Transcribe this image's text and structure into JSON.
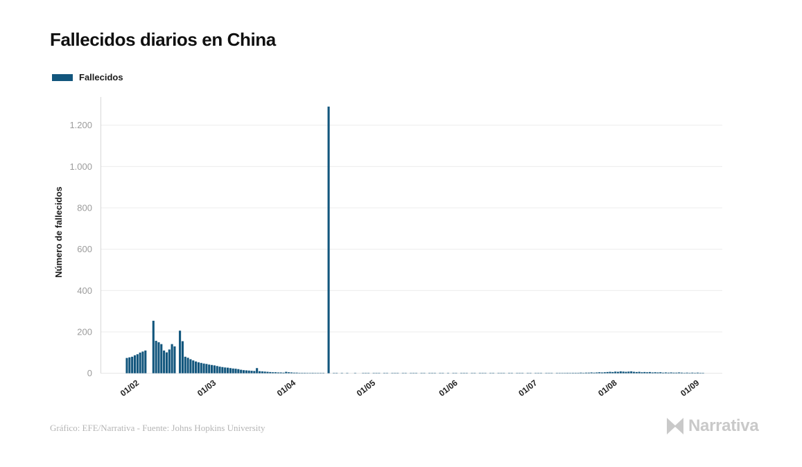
{
  "header": {
    "title": "Fallecidos diarios en China"
  },
  "legend": {
    "label": "Fallecidos",
    "color": "#12567D"
  },
  "footer": {
    "source": "Gráfico: EFE/Narrativa - Fuente: Johns Hopkins University",
    "brand": "Narrativa"
  },
  "chart_data": {
    "type": "bar",
    "title": "Fallecidos diarios en China",
    "xlabel": "",
    "ylabel": "Número de fallecidos",
    "ylim": [
      0,
      1340
    ],
    "grid": "horizontal",
    "legend_position": "top-left",
    "max_value": 1290,
    "y_ticks": [
      {
        "label": "0",
        "value": 0
      },
      {
        "label": "200",
        "value": 200
      },
      {
        "label": "400",
        "value": 400
      },
      {
        "label": "600",
        "value": 600
      },
      {
        "label": "800",
        "value": 800
      },
      {
        "label": "1.000",
        "value": 1000
      },
      {
        "label": "1.200",
        "value": 1200
      }
    ],
    "x_ticks": [
      {
        "label": "01/02",
        "index": 4
      },
      {
        "label": "01/03",
        "index": 33
      },
      {
        "label": "01/04",
        "index": 63
      },
      {
        "label": "01/05",
        "index": 93
      },
      {
        "label": "01/06",
        "index": 124
      },
      {
        "label": "01/07",
        "index": 154
      },
      {
        "label": "01/08",
        "index": 184
      },
      {
        "label": "01/09",
        "index": 215
      }
    ],
    "colors": {
      "bar": "#12567D",
      "grid": "#ECECEC",
      "baseline": "#E3E3E3",
      "axis": "#D6D6D6",
      "y_tick_text": "#9B9B9B",
      "x_tick_text": "#222222",
      "axis_title_text": "#1A1A1A"
    },
    "series": [
      {
        "name": "Fallecidos",
        "color": "#12567D",
        "values": [
          74,
          77,
          80,
          87,
          92,
          100,
          105,
          110,
          0,
          0,
          254,
          157,
          150,
          141,
          110,
          101,
          115,
          141,
          130,
          0,
          206,
          155,
          80,
          75,
          68,
          62,
          57,
          53,
          50,
          47,
          45,
          42,
          40,
          38,
          35,
          32,
          30,
          28,
          27,
          25,
          23,
          22,
          20,
          17,
          15,
          14,
          13,
          12,
          11,
          25,
          10,
          9,
          8,
          7,
          6,
          5,
          5,
          4,
          4,
          3,
          7,
          5,
          4,
          3,
          3,
          2,
          2,
          2,
          1,
          1,
          2,
          1,
          1,
          1,
          1,
          0,
          1290,
          0,
          1,
          1,
          0,
          1,
          0,
          1,
          0,
          0,
          1,
          0,
          0,
          1,
          1,
          1,
          0,
          1,
          1,
          1,
          0,
          1,
          1,
          0,
          1,
          1,
          1,
          0,
          1,
          1,
          0,
          1,
          1,
          1,
          0,
          1,
          1,
          0,
          1,
          1,
          1,
          0,
          1,
          1,
          0,
          1,
          0,
          1,
          1,
          0,
          1,
          1,
          1,
          0,
          1,
          1,
          0,
          1,
          1,
          1,
          0,
          1,
          1,
          0,
          1,
          1,
          1,
          0,
          1,
          1,
          0,
          1,
          1,
          1,
          0,
          1,
          1,
          0,
          1,
          1,
          1,
          0,
          1,
          1,
          1,
          0,
          1,
          1,
          1,
          1,
          2,
          1,
          2,
          2,
          2,
          3,
          2,
          3,
          3,
          4,
          3,
          4,
          5,
          4,
          5,
          6,
          7,
          6,
          8,
          7,
          9,
          8,
          7,
          8,
          9,
          7,
          6,
          7,
          5,
          6,
          5,
          6,
          4,
          5,
          4,
          5,
          3,
          4,
          3,
          4,
          3,
          3,
          4,
          3,
          2,
          3,
          2,
          3,
          2,
          3,
          2,
          2
        ]
      }
    ]
  }
}
